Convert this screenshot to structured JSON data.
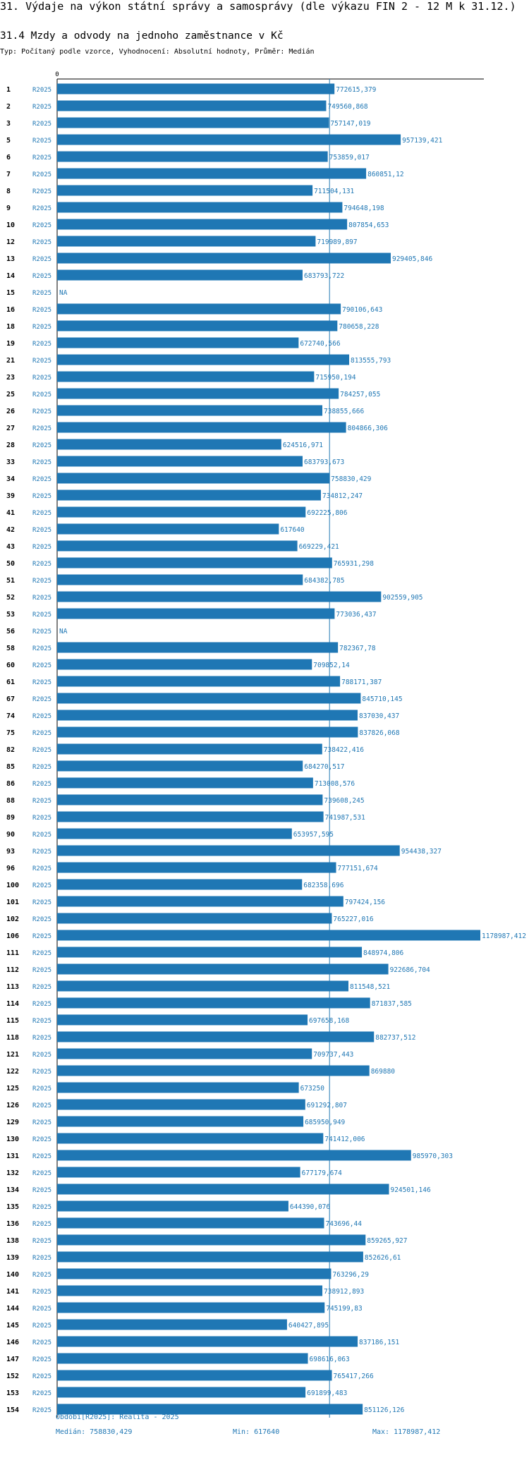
{
  "header": {
    "title": "31. Výdaje na výkon státní správy a samosprávy (dle výkazu FIN 2 - 12 M k 31.12.)",
    "subtitle": "31.4 Mzdy a odvody na jednoho zaměstnance v Kč",
    "info": "Typ: Počítaný podle vzorce, Vyhodnocení: Absolutní hodnoty, Průměr: Medián"
  },
  "colors": {
    "bar": "#1f77b4",
    "label": "#1f77b4",
    "text": "#000000",
    "axis": "#000000"
  },
  "chart_data": {
    "type": "bar",
    "orientation": "horizontal",
    "axis_zero_label": "0",
    "period": "R2025",
    "missing_label": "NA",
    "xlim": [
      0,
      1178987.412
    ],
    "median_line": 758830.429,
    "rows": [
      {
        "id": "1",
        "value": 772615.379,
        "label": "772615,379"
      },
      {
        "id": "2",
        "value": 749560.868,
        "label": "749560,868"
      },
      {
        "id": "3",
        "value": 757147.019,
        "label": "757147,019"
      },
      {
        "id": "5",
        "value": 957139.421,
        "label": "957139,421"
      },
      {
        "id": "6",
        "value": 753859.017,
        "label": "753859,017"
      },
      {
        "id": "7",
        "value": 860851.12,
        "label": "860851,12"
      },
      {
        "id": "8",
        "value": 711504.131,
        "label": "711504,131"
      },
      {
        "id": "9",
        "value": 794648.198,
        "label": "794648,198"
      },
      {
        "id": "10",
        "value": 807854.653,
        "label": "807854,653"
      },
      {
        "id": "12",
        "value": 719989.897,
        "label": "719989,897"
      },
      {
        "id": "13",
        "value": 929405.846,
        "label": "929405,846"
      },
      {
        "id": "14",
        "value": 683793.722,
        "label": "683793,722"
      },
      {
        "id": "15",
        "value": null,
        "label": "NA"
      },
      {
        "id": "16",
        "value": 790106.643,
        "label": "790106,643"
      },
      {
        "id": "18",
        "value": 780658.228,
        "label": "780658,228"
      },
      {
        "id": "19",
        "value": 672740.566,
        "label": "672740,566"
      },
      {
        "id": "21",
        "value": 813555.793,
        "label": "813555,793"
      },
      {
        "id": "23",
        "value": 715950.194,
        "label": "715950,194"
      },
      {
        "id": "25",
        "value": 784257.055,
        "label": "784257,055"
      },
      {
        "id": "26",
        "value": 738855.666,
        "label": "738855,666"
      },
      {
        "id": "27",
        "value": 804866.306,
        "label": "804866,306"
      },
      {
        "id": "28",
        "value": 624516.971,
        "label": "624516,971"
      },
      {
        "id": "33",
        "value": 683793.673,
        "label": "683793,673"
      },
      {
        "id": "34",
        "value": 758830.429,
        "label": "758830,429"
      },
      {
        "id": "39",
        "value": 734812.247,
        "label": "734812,247"
      },
      {
        "id": "41",
        "value": 692225.806,
        "label": "692225,806"
      },
      {
        "id": "42",
        "value": 617640,
        "label": "617640"
      },
      {
        "id": "43",
        "value": 669229.421,
        "label": "669229,421"
      },
      {
        "id": "50",
        "value": 765931.298,
        "label": "765931,298"
      },
      {
        "id": "51",
        "value": 684382.785,
        "label": "684382,785"
      },
      {
        "id": "52",
        "value": 902559.905,
        "label": "902559,905"
      },
      {
        "id": "53",
        "value": 773036.437,
        "label": "773036,437"
      },
      {
        "id": "56",
        "value": null,
        "label": "NA"
      },
      {
        "id": "58",
        "value": 782367.78,
        "label": "782367,78"
      },
      {
        "id": "60",
        "value": 709852.14,
        "label": "709852,14"
      },
      {
        "id": "61",
        "value": 788171.387,
        "label": "788171,387"
      },
      {
        "id": "67",
        "value": 845710.145,
        "label": "845710,145"
      },
      {
        "id": "74",
        "value": 837030.437,
        "label": "837030,437"
      },
      {
        "id": "75",
        "value": 837826.068,
        "label": "837826,068"
      },
      {
        "id": "82",
        "value": 738422.416,
        "label": "738422,416"
      },
      {
        "id": "85",
        "value": 684270.517,
        "label": "684270,517"
      },
      {
        "id": "86",
        "value": 713008.576,
        "label": "713008,576"
      },
      {
        "id": "88",
        "value": 739608.245,
        "label": "739608,245"
      },
      {
        "id": "89",
        "value": 741987.531,
        "label": "741987,531"
      },
      {
        "id": "90",
        "value": 653957.595,
        "label": "653957,595"
      },
      {
        "id": "93",
        "value": 954438.327,
        "label": "954438,327"
      },
      {
        "id": "96",
        "value": 777151.674,
        "label": "777151,674"
      },
      {
        "id": "100",
        "value": 682358.696,
        "label": "682358,696"
      },
      {
        "id": "101",
        "value": 797424.156,
        "label": "797424,156"
      },
      {
        "id": "102",
        "value": 765227.016,
        "label": "765227,016"
      },
      {
        "id": "106",
        "value": 1178987.412,
        "label": "1178987,412"
      },
      {
        "id": "111",
        "value": 848974.806,
        "label": "848974,806"
      },
      {
        "id": "112",
        "value": 922686.704,
        "label": "922686,704"
      },
      {
        "id": "113",
        "value": 811548.521,
        "label": "811548,521"
      },
      {
        "id": "114",
        "value": 871837.585,
        "label": "871837,585"
      },
      {
        "id": "115",
        "value": 697658.168,
        "label": "697658,168"
      },
      {
        "id": "118",
        "value": 882737.512,
        "label": "882737,512"
      },
      {
        "id": "121",
        "value": 709737.443,
        "label": "709737,443"
      },
      {
        "id": "122",
        "value": 869880,
        "label": "869880"
      },
      {
        "id": "125",
        "value": 673250,
        "label": "673250"
      },
      {
        "id": "126",
        "value": 691292.807,
        "label": "691292,807"
      },
      {
        "id": "129",
        "value": 685950.949,
        "label": "685950,949"
      },
      {
        "id": "130",
        "value": 741412.006,
        "label": "741412,006"
      },
      {
        "id": "131",
        "value": 985970.303,
        "label": "985970,303"
      },
      {
        "id": "132",
        "value": 677179.674,
        "label": "677179,674"
      },
      {
        "id": "134",
        "value": 924501.146,
        "label": "924501,146"
      },
      {
        "id": "135",
        "value": 644390.076,
        "label": "644390,076"
      },
      {
        "id": "136",
        "value": 743696.44,
        "label": "743696,44"
      },
      {
        "id": "138",
        "value": 859265.927,
        "label": "859265,927"
      },
      {
        "id": "139",
        "value": 852626.61,
        "label": "852626,61"
      },
      {
        "id": "140",
        "value": 763296.29,
        "label": "763296,29"
      },
      {
        "id": "141",
        "value": 738912.893,
        "label": "738912,893"
      },
      {
        "id": "144",
        "value": 745199.83,
        "label": "745199,83"
      },
      {
        "id": "145",
        "value": 640427.895,
        "label": "640427,895"
      },
      {
        "id": "146",
        "value": 837186.151,
        "label": "837186,151"
      },
      {
        "id": "147",
        "value": 698616.063,
        "label": "698616,063"
      },
      {
        "id": "152",
        "value": 765417.266,
        "label": "765417,266"
      },
      {
        "id": "153",
        "value": 691899.483,
        "label": "691899,483"
      },
      {
        "id": "154",
        "value": 851126.126,
        "label": "851126,126"
      }
    ]
  },
  "footer": {
    "period": "Období[R2025]: Realita - 2025",
    "median": "Medián: 758830,429",
    "min": "Min: 617640",
    "max": "Max: 1178987,412"
  }
}
